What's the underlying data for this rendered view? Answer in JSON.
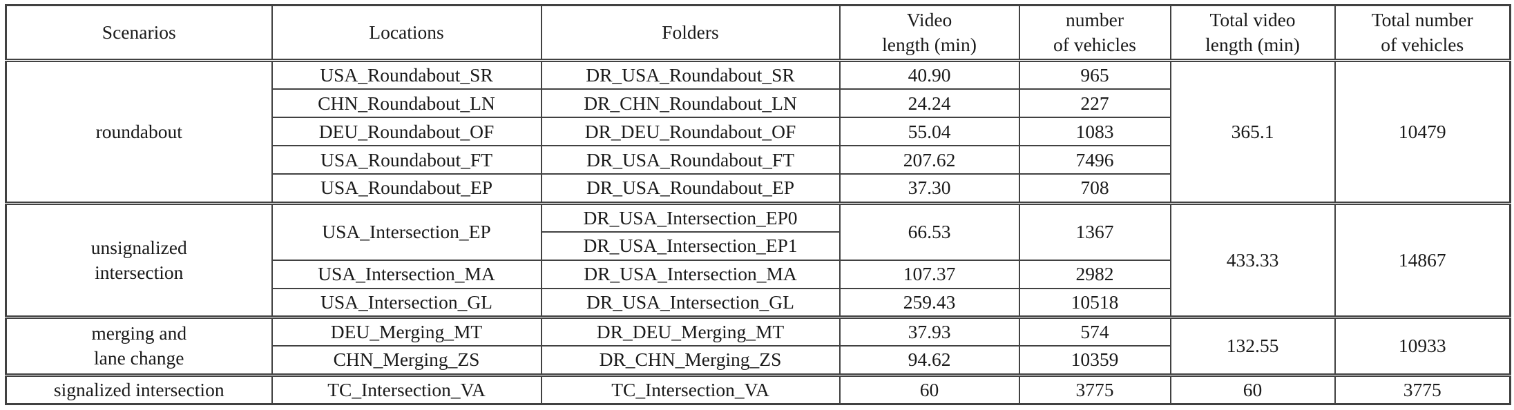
{
  "page": {
    "background": "#ffffff",
    "text_color": "#1a1a1a",
    "border_color": "#414141"
  },
  "table": {
    "headers": {
      "scenarios": "Scenarios",
      "locations": "Locations",
      "folders": "Folders",
      "video_length": "Video\nlength (min)",
      "num_vehicles": "number\nof vehicles",
      "total_video_length": "Total video\nlength (min)",
      "total_num_vehicles": "Total number\nof vehicles"
    },
    "sections": [
      {
        "scenario": "roundabout",
        "total_video_length": "365.1",
        "total_vehicles": "10479",
        "rows": [
          {
            "location": "USA_Roundabout_SR",
            "folders": [
              "DR_USA_Roundabout_SR"
            ],
            "video_length": "40.90",
            "vehicles": "965"
          },
          {
            "location": "CHN_Roundabout_LN",
            "folders": [
              "DR_CHN_Roundabout_LN"
            ],
            "video_length": "24.24",
            "vehicles": "227"
          },
          {
            "location": "DEU_Roundabout_OF",
            "folders": [
              "DR_DEU_Roundabout_OF"
            ],
            "video_length": "55.04",
            "vehicles": "1083"
          },
          {
            "location": "USA_Roundabout_FT",
            "folders": [
              "DR_USA_Roundabout_FT"
            ],
            "video_length": "207.62",
            "vehicles": "7496"
          },
          {
            "location": "USA_Roundabout_EP",
            "folders": [
              "DR_USA_Roundabout_EP"
            ],
            "video_length": "37.30",
            "vehicles": "708"
          }
        ]
      },
      {
        "scenario": "unsignalized\nintersection",
        "total_video_length": "433.33",
        "total_vehicles": "14867",
        "rows": [
          {
            "location": "USA_Intersection_EP",
            "folders": [
              "DR_USA_Intersection_EP0",
              "DR_USA_Intersection_EP1"
            ],
            "video_length": "66.53",
            "vehicles": "1367"
          },
          {
            "location": "USA_Intersection_MA",
            "folders": [
              "DR_USA_Intersection_MA"
            ],
            "video_length": "107.37",
            "vehicles": "2982"
          },
          {
            "location": "USA_Intersection_GL",
            "folders": [
              "DR_USA_Intersection_GL"
            ],
            "video_length": "259.43",
            "vehicles": "10518"
          }
        ]
      },
      {
        "scenario": "merging and\nlane change",
        "total_video_length": "132.55",
        "total_vehicles": "10933",
        "rows": [
          {
            "location": "DEU_Merging_MT",
            "folders": [
              "DR_DEU_Merging_MT"
            ],
            "video_length": "37.93",
            "vehicles": "574"
          },
          {
            "location": "CHN_Merging_ZS",
            "folders": [
              "DR_CHN_Merging_ZS"
            ],
            "video_length": "94.62",
            "vehicles": "10359"
          }
        ]
      },
      {
        "scenario": "signalized intersection",
        "total_video_length": "60",
        "total_vehicles": "3775",
        "rows": [
          {
            "location": "TC_Intersection_VA",
            "folders": [
              "TC_Intersection_VA"
            ],
            "video_length": "60",
            "vehicles": "3775"
          }
        ]
      }
    ]
  }
}
